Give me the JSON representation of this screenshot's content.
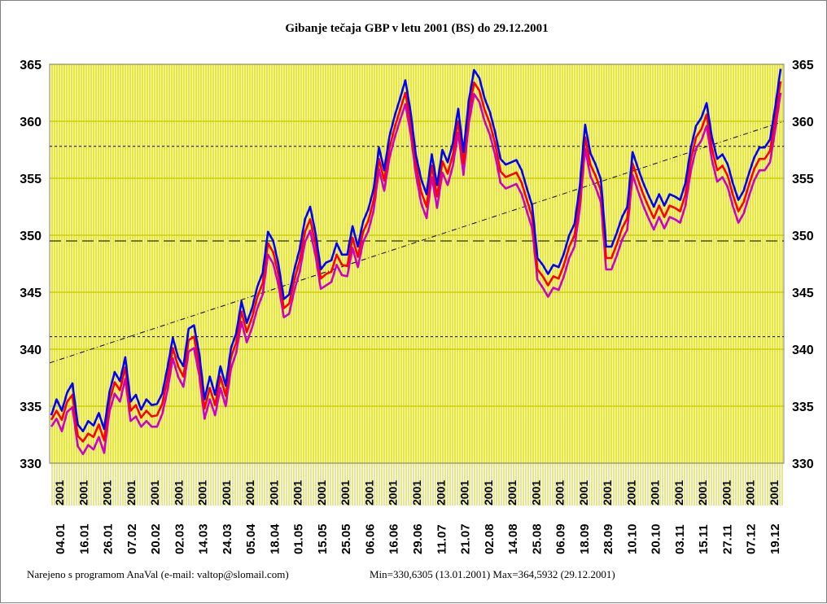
{
  "chart_data": {
    "type": "line",
    "title": "Gibanje tečaja GBP v letu 2001 (BS) do 29.12.2001",
    "ylim": [
      330,
      365
    ],
    "yticks": [
      330,
      335,
      340,
      345,
      350,
      355,
      360,
      365
    ],
    "xticks": [
      "04.01",
      "16.01",
      "26.01",
      "07.02",
      "20.02",
      "02.03",
      "14.03",
      "24.03",
      "05.04",
      "18.04",
      "01.05",
      "15.05",
      "25.05",
      "06.06",
      "16.06",
      "29.06",
      "11.07",
      "21.07",
      "02.08",
      "14.08",
      "25.08",
      "06.09",
      "18.09",
      "28.09",
      "10.10",
      "20.10",
      "03.11",
      "15.11",
      "27.11",
      "07.12",
      "19.12"
    ],
    "year_label": "2001",
    "grid": true,
    "plot_background": "#ffff99",
    "grid_color": "#c8c800",
    "reference_lines": [
      {
        "style": "dashed",
        "value": 349.5
      },
      {
        "style": "dotted",
        "value": 357.8
      },
      {
        "style": "dotted",
        "value": 341.1
      }
    ],
    "trend_line": {
      "style": "dash-dot",
      "from": 338.8,
      "to": 360.0
    },
    "series": [
      {
        "color": "#0000ff",
        "values": [
          334.2,
          335.6,
          334.6,
          336.2,
          337.0,
          333.4,
          332.8,
          333.7,
          333.3,
          334.4,
          333.0,
          336.2,
          338.0,
          337.2,
          339.3,
          335.4,
          336.0,
          334.7,
          335.6,
          335.1,
          335.2,
          336.1,
          338.4,
          341.0,
          339.3,
          338.5,
          341.8,
          342.1,
          339.6,
          335.6,
          337.6,
          336.0,
          338.5,
          336.8,
          340.1,
          341.4,
          344.2,
          342.3,
          343.6,
          345.5,
          346.7,
          350.3,
          349.5,
          347.4,
          344.4,
          344.8,
          347.0,
          348.8,
          351.4,
          352.5,
          350.2,
          347.0,
          347.6,
          347.8,
          349.3,
          348.3,
          348.3,
          350.8,
          349.0,
          351.2,
          352.3,
          354.1,
          357.7,
          355.7,
          358.7,
          360.5,
          362.0,
          363.6,
          360.8,
          357.0,
          354.9,
          353.6,
          357.1,
          354.4,
          357.5,
          356.4,
          358.1,
          361.1,
          357.3,
          361.8,
          364.5,
          363.8,
          362.0,
          360.8,
          359.0,
          356.7,
          356.2,
          356.4,
          356.6,
          355.7,
          354.1,
          352.6,
          348.0,
          347.4,
          346.6,
          347.4,
          347.2,
          348.4,
          350.0,
          351.0,
          354.3,
          359.7,
          357.2,
          356.2,
          354.9,
          349.0,
          349.0,
          350.2,
          351.6,
          352.5,
          357.3,
          355.9,
          354.6,
          353.5,
          352.5,
          353.6,
          352.6,
          353.6,
          353.4,
          353.1,
          354.6,
          357.6,
          359.6,
          360.3,
          361.6,
          358.6,
          356.7,
          357.1,
          356.2,
          354.5,
          353.1,
          353.9,
          355.4,
          356.8,
          357.7,
          357.7,
          358.4,
          361.3,
          364.6
        ]
      },
      {
        "color": "#ff0000",
        "values": [
          333.8,
          334.6,
          333.8,
          335.4,
          336.0,
          332.4,
          331.9,
          332.6,
          332.3,
          333.4,
          332.0,
          335.4,
          337.1,
          336.4,
          338.4,
          334.6,
          335.1,
          334.0,
          334.6,
          334.1,
          334.2,
          335.2,
          337.4,
          340.1,
          338.5,
          337.6,
          340.8,
          341.1,
          338.6,
          334.8,
          336.6,
          335.1,
          337.6,
          335.9,
          339.3,
          340.6,
          343.3,
          341.5,
          342.8,
          344.6,
          345.8,
          349.3,
          348.5,
          346.5,
          343.6,
          344.0,
          346.1,
          347.8,
          350.3,
          351.4,
          349.2,
          346.2,
          346.6,
          346.8,
          348.3,
          347.4,
          347.3,
          349.8,
          348.1,
          350.3,
          351.3,
          353.1,
          356.7,
          354.8,
          357.7,
          359.5,
          361.0,
          362.5,
          359.8,
          356.2,
          353.8,
          352.5,
          356.1,
          353.4,
          356.5,
          355.4,
          357.1,
          360.0,
          356.3,
          360.8,
          363.4,
          362.7,
          361.0,
          359.8,
          358.0,
          355.6,
          355.1,
          355.3,
          355.5,
          354.6,
          353.1,
          351.6,
          347.0,
          346.4,
          345.6,
          346.4,
          346.2,
          347.4,
          349.0,
          350.0,
          353.3,
          358.6,
          356.2,
          355.2,
          353.9,
          348.0,
          348.0,
          349.2,
          350.6,
          351.5,
          356.3,
          354.9,
          353.6,
          352.5,
          351.5,
          352.6,
          351.6,
          352.6,
          352.4,
          352.1,
          353.6,
          356.6,
          358.6,
          359.3,
          360.6,
          357.6,
          355.7,
          356.1,
          355.2,
          353.5,
          352.1,
          352.9,
          354.4,
          355.8,
          356.7,
          356.7,
          357.4,
          360.3,
          363.5
        ]
      },
      {
        "color": "#cc00cc",
        "values": [
          333.2,
          333.9,
          332.8,
          334.5,
          334.9,
          331.5,
          330.8,
          331.6,
          331.2,
          332.3,
          330.9,
          334.5,
          336.1,
          335.4,
          337.4,
          333.7,
          334.1,
          333.2,
          333.7,
          333.2,
          333.2,
          334.3,
          336.4,
          339.2,
          337.6,
          336.7,
          339.8,
          340.1,
          337.7,
          333.9,
          335.6,
          334.2,
          336.6,
          335.0,
          338.3,
          339.7,
          342.4,
          340.6,
          341.9,
          343.6,
          344.8,
          348.3,
          347.5,
          345.6,
          342.8,
          343.1,
          345.2,
          346.8,
          349.4,
          350.4,
          348.2,
          345.3,
          345.6,
          345.9,
          347.4,
          346.5,
          346.4,
          348.9,
          347.2,
          349.4,
          350.4,
          352.2,
          355.8,
          353.9,
          356.8,
          358.6,
          360.1,
          361.5,
          358.9,
          355.3,
          352.8,
          351.5,
          355.1,
          352.4,
          355.5,
          354.4,
          356.1,
          359.0,
          355.3,
          359.8,
          362.4,
          361.7,
          360.0,
          358.8,
          357.0,
          354.6,
          354.1,
          354.3,
          354.5,
          353.6,
          352.1,
          350.6,
          346.1,
          345.4,
          344.6,
          345.4,
          345.2,
          346.4,
          348.0,
          349.0,
          352.3,
          357.6,
          355.2,
          354.2,
          352.9,
          347.0,
          347.0,
          348.2,
          349.6,
          350.5,
          355.3,
          353.9,
          352.6,
          351.5,
          350.5,
          351.6,
          350.6,
          351.6,
          351.4,
          351.1,
          352.6,
          355.6,
          357.6,
          358.3,
          359.6,
          356.6,
          354.7,
          355.1,
          354.2,
          352.5,
          351.1,
          351.9,
          353.4,
          354.8,
          355.7,
          355.7,
          356.4,
          359.3,
          362.5
        ]
      }
    ]
  },
  "footer": {
    "credit": "Narejeno s programom AnaVal (e-mail: valtop@slomail.com)",
    "minmax": "Min=330,6305 (13.01.2001) Max=364,5932 (29.12.2001)"
  }
}
